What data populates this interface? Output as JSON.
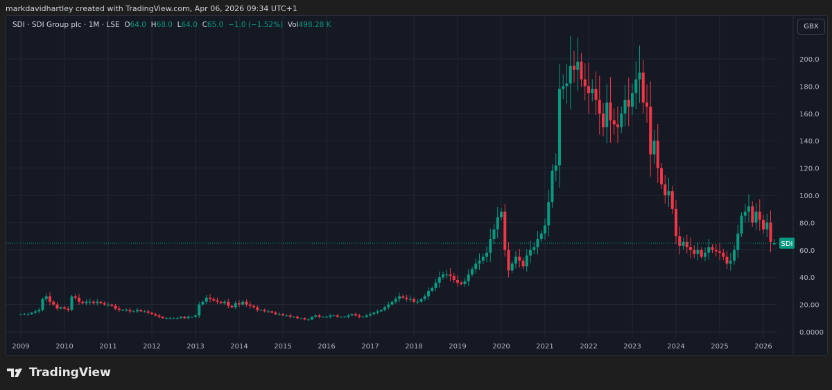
{
  "credit": "markdavidhartley created with TradingView.com, Apr 06, 2026 09:34 UTC+1",
  "legend": {
    "symbol": "SDI · SDI Group plc · 1M · LSE",
    "o_label": "O",
    "o": "64.0",
    "h_label": "H",
    "h": "68.0",
    "l_label": "L",
    "l": "64.0",
    "c_label": "C",
    "c": "65.0",
    "change": "−1.0 (−1.52%)",
    "vol_label": "Vol",
    "vol": "498.28 K"
  },
  "currency_button": "GBX",
  "price_badge": "SDI",
  "footer_brand": "TradingView",
  "colors": {
    "up": "#089981",
    "down": "#f23645",
    "background": "#151924",
    "grid": "#232734"
  },
  "chart_data": {
    "type": "candlestick",
    "interval": "1M",
    "start": "2009-01",
    "x_ticks": [
      "2009",
      "2010",
      "2011",
      "2012",
      "2013",
      "2014",
      "2015",
      "2016",
      "2017",
      "2018",
      "2019",
      "2020",
      "2021",
      "2022",
      "2023",
      "2024",
      "2025",
      "2026"
    ],
    "y_ticks": [
      "0.0000",
      "20.00",
      "40.0",
      "60.0",
      "80.0",
      "100.0",
      "120.0",
      "140.0",
      "160.0",
      "180.0",
      "200.0"
    ],
    "ylim": [
      0,
      215
    ],
    "grid": true,
    "last_price": 65.0,
    "last_candle": {
      "open": 64.0,
      "high": 68.0,
      "low": 64.0,
      "close": 65.0
    },
    "monthly_close": [
      13,
      13,
      13,
      14,
      15,
      16,
      24,
      26,
      22,
      20,
      17,
      18,
      17,
      16,
      26,
      25,
      22,
      21,
      22,
      22,
      21,
      22,
      21,
      20,
      20,
      19,
      17,
      16,
      16,
      16,
      15,
      15,
      16,
      15,
      15,
      14,
      13,
      12,
      11,
      10,
      10,
      10,
      10,
      10,
      11,
      10,
      11,
      11,
      12,
      20,
      22,
      25,
      24,
      23,
      22,
      21,
      22,
      19,
      18,
      21,
      20,
      22,
      20,
      19,
      18,
      16,
      16,
      15,
      15,
      14,
      13,
      13,
      12,
      12,
      11,
      11,
      10,
      10,
      9,
      9,
      11,
      12,
      11,
      11,
      11,
      12,
      12,
      11,
      11,
      11,
      12,
      13,
      12,
      11,
      11,
      12,
      13,
      14,
      15,
      16,
      18,
      20,
      22,
      24,
      26,
      25,
      24,
      24,
      22,
      22,
      24,
      26,
      30,
      32,
      36,
      40,
      42,
      42,
      41,
      38,
      36,
      35,
      37,
      42,
      46,
      50,
      52,
      55,
      58,
      68,
      75,
      84,
      88,
      60,
      45,
      50,
      55,
      52,
      48,
      56,
      60,
      62,
      68,
      72,
      78,
      95,
      118,
      122,
      178,
      180,
      182,
      195,
      192,
      198,
      185,
      180,
      175,
      178,
      170,
      160,
      150,
      168,
      155,
      152,
      150,
      160,
      170,
      165,
      175,
      185,
      190,
      168,
      165,
      130,
      140,
      120,
      108,
      100,
      103,
      90,
      70,
      63,
      66,
      62,
      60,
      57,
      60,
      55,
      58,
      62,
      60,
      59,
      58,
      55,
      50,
      52,
      60,
      72,
      85,
      88,
      92,
      80,
      88,
      82,
      75,
      80,
      66,
      65
    ]
  }
}
